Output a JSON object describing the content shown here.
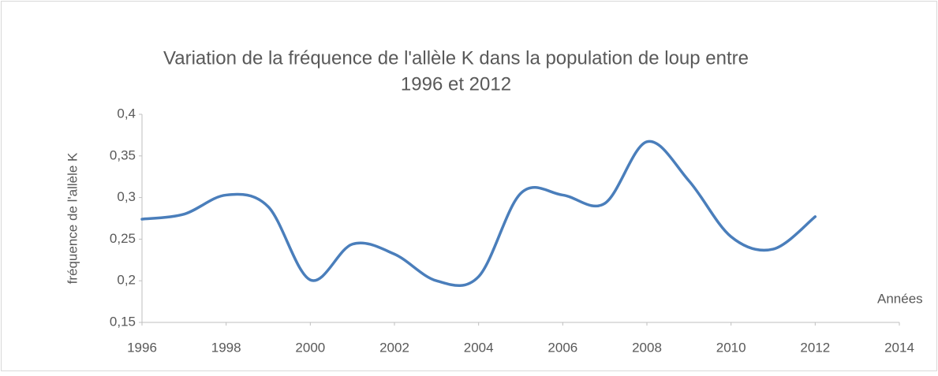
{
  "chart_data": {
    "type": "line",
    "title": [
      "Variation de la fréquence de l'allèle K dans la population de loup  entre",
      "1996 et 2012"
    ],
    "x_label": "Années",
    "y_label": "fréquence de l'allèle K",
    "x": [
      1996,
      1997,
      1998,
      1999,
      2000,
      2001,
      2002,
      2003,
      2004,
      2005,
      2006,
      2007,
      2008,
      2009,
      2010,
      2011,
      2012
    ],
    "series": [
      {
        "name": "fréquence",
        "color": "#4a7ebb",
        "values": [
          0.274,
          0.28,
          0.303,
          0.289,
          0.201,
          0.244,
          0.232,
          0.2,
          0.205,
          0.305,
          0.303,
          0.293,
          0.367,
          0.32,
          0.253,
          0.238,
          0.277
        ]
      }
    ],
    "xlim": [
      1996,
      2014
    ],
    "xticks": [
      1996,
      1998,
      2000,
      2002,
      2004,
      2006,
      2008,
      2010,
      2012,
      2014
    ],
    "ylim": [
      0.15,
      0.4
    ],
    "yticks": [
      {
        "value": 0.15,
        "label": "0,15"
      },
      {
        "value": 0.2,
        "label": "0,2"
      },
      {
        "value": 0.25,
        "label": "0,25"
      },
      {
        "value": 0.3,
        "label": "0,3"
      },
      {
        "value": 0.35,
        "label": "0,35"
      },
      {
        "value": 0.4,
        "label": "0,4"
      }
    ],
    "smooth": true,
    "grid": false
  }
}
